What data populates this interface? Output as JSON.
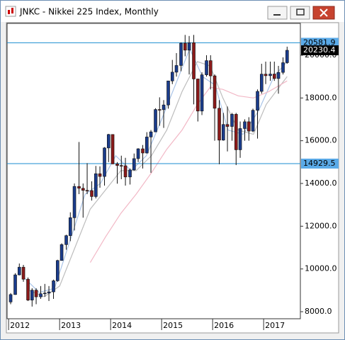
{
  "window": {
    "title": "JNKC - Nikkei 225 Index, Monthly"
  },
  "chart_data": {
    "type": "candlestick",
    "up_color": "#1a3c8c",
    "down_color": "#8b1a1a",
    "x": [
      2012.04,
      2012.13,
      2012.21,
      2012.29,
      2012.38,
      2012.46,
      2012.54,
      2012.63,
      2012.71,
      2012.79,
      2012.88,
      2012.96,
      2013.04,
      2013.13,
      2013.21,
      2013.29,
      2013.38,
      2013.46,
      2013.54,
      2013.63,
      2013.71,
      2013.79,
      2013.88,
      2013.96,
      2014.04,
      2014.13,
      2014.21,
      2014.29,
      2014.38,
      2014.46,
      2014.54,
      2014.63,
      2014.71,
      2014.79,
      2014.88,
      2014.96,
      2015.04,
      2015.13,
      2015.21,
      2015.29,
      2015.38,
      2015.46,
      2015.54,
      2015.63,
      2015.71,
      2015.79,
      2015.88,
      2015.96,
      2016.04,
      2016.13,
      2016.21,
      2016.29,
      2016.38,
      2016.46,
      2016.54,
      2016.63,
      2016.71,
      2016.79,
      2016.88,
      2016.96,
      2017.04,
      2017.13,
      2017.21,
      2017.29,
      2017.38,
      2017.46
    ],
    "open": [
      8455,
      8802,
      9723,
      10083,
      9520,
      8543,
      9007,
      8695,
      8840,
      8870,
      8928,
      9446,
      10395,
      11139,
      11559,
      12398,
      13861,
      13775,
      13677,
      13668,
      13389,
      14456,
      14328,
      15662,
      16291,
      14915,
      14841,
      14828,
      14304,
      14632,
      15162,
      15621,
      15425,
      16174,
      16414,
      17460,
      17451,
      17674,
      18798,
      19207,
      19520,
      20563,
      20236,
      20585,
      18890,
      17388,
      19083,
      19747,
      19034,
      17518,
      16027,
      16759,
      16666,
      17235,
      15576,
      16569,
      16887,
      16450,
      17425,
      18308,
      19114,
      19041,
      19119,
      18909,
      19197,
      19651
    ],
    "high": [
      8870,
      9800,
      10255,
      10190,
      9600,
      9100,
      9100,
      9200,
      9300,
      9200,
      9500,
      10430,
      11200,
      11600,
      12650,
      14000,
      15940,
      14000,
      14950,
      14100,
      14820,
      14800,
      15700,
      16320,
      16300,
      15000,
      15300,
      15200,
      14700,
      15400,
      15650,
      15800,
      16400,
      16500,
      17520,
      18030,
      17900,
      18800,
      19780,
      20100,
      20600,
      20950,
      20900,
      20950,
      18900,
      19200,
      20000,
      20000,
      19100,
      17900,
      17300,
      17600,
      17300,
      17300,
      16900,
      17000,
      17100,
      17500,
      18400,
      19600,
      19700,
      19700,
      19700,
      19500,
      19900,
      20400
    ],
    "low": [
      8350,
      8790,
      9700,
      9400,
      8500,
      8240,
      8350,
      8600,
      8700,
      8500,
      8600,
      9400,
      10400,
      10900,
      11300,
      11800,
      13500,
      12400,
      13500,
      13200,
      13300,
      13800,
      13900,
      15000,
      14900,
      13990,
      14200,
      13900,
      13950,
      14600,
      15000,
      14700,
      15400,
      14500,
      16400,
      16700,
      16600,
      17500,
      18650,
      19000,
      19250,
      19950,
      19100,
      17700,
      16900,
      17200,
      19000,
      18400,
      16000,
      14900,
      16000,
      15500,
      16000,
      14860,
      15200,
      16000,
      16000,
      16400,
      16100,
      18200,
      18650,
      18800,
      18800,
      18200,
      19100,
      19600
    ],
    "close": [
      8802,
      9723,
      10083,
      9520,
      8543,
      9007,
      8695,
      8840,
      8870,
      8928,
      9446,
      10395,
      11139,
      11559,
      12398,
      13861,
      13775,
      13677,
      13668,
      13389,
      14456,
      14328,
      15662,
      16291,
      14915,
      14841,
      14828,
      14304,
      14632,
      15162,
      15621,
      15425,
      16174,
      16414,
      17460,
      17451,
      17674,
      18798,
      19207,
      19520,
      20563,
      20236,
      20585,
      18890,
      17388,
      19083,
      19747,
      19034,
      17518,
      16027,
      16759,
      16666,
      17235,
      15576,
      16569,
      16887,
      16450,
      17425,
      18308,
      19114,
      19041,
      19119,
      18909,
      19197,
      19651,
      20230.4
    ],
    "overlays": [
      {
        "color": "#a9c4e8",
        "x": [
          2012.3,
          2012.6,
          2012.9,
          2013.2,
          2013.5,
          2013.8,
          2014.1,
          2014.4,
          2014.7,
          2015.0,
          2015.3,
          2015.55,
          2015.8,
          2016.05,
          2016.3,
          2016.6,
          2016.9,
          2017.2,
          2017.46
        ],
        "values": [
          9600,
          8900,
          9100,
          11300,
          13500,
          14000,
          15300,
          14600,
          15300,
          17000,
          18800,
          20300,
          19000,
          18600,
          16500,
          16300,
          17400,
          19000,
          19700
        ]
      },
      {
        "color": "#bdbdbd",
        "x": [
          2012.4,
          2012.7,
          2013.0,
          2013.3,
          2013.6,
          2013.9,
          2014.2,
          2014.5,
          2014.8,
          2015.1,
          2015.4,
          2015.7,
          2015.95,
          2016.2,
          2016.5,
          2016.8,
          2017.05,
          2017.46
        ],
        "values": [
          9000,
          8700,
          9200,
          11000,
          12800,
          13700,
          14600,
          14600,
          15300,
          16500,
          18300,
          19700,
          19500,
          18000,
          16500,
          16300,
          17700,
          19000
        ]
      },
      {
        "color": "#f2b8c6",
        "x": [
          2013.6,
          2013.9,
          2014.2,
          2014.5,
          2014.8,
          2015.1,
          2015.4,
          2015.7,
          2015.95,
          2016.2,
          2016.5,
          2016.8,
          2017.1,
          2017.46
        ],
        "values": [
          10300,
          11500,
          12600,
          13500,
          14500,
          15600,
          16500,
          17700,
          18500,
          18400,
          18100,
          18000,
          18300,
          18800
        ]
      }
    ],
    "levels": [
      20581.9,
      14929.5
    ],
    "level_color": "#1b8ed0",
    "xlim": [
      2011.97,
      2017.72
    ],
    "xticks": [
      2012,
      2013,
      2014,
      2015,
      2016,
      2017
    ],
    "ylim": [
      7670,
      21490
    ],
    "yticks": [
      {
        "value": 8000,
        "label": "8000.0"
      },
      {
        "value": 10000,
        "label": "10000.0"
      },
      {
        "value": 12000,
        "label": "12000.0"
      },
      {
        "value": 14000,
        "label": "14000.0"
      },
      {
        "value": 16000,
        "label": "16000.0"
      },
      {
        "value": 18000,
        "label": "18000.0"
      },
      {
        "value": 20000,
        "label": "20000.0"
      }
    ]
  }
}
